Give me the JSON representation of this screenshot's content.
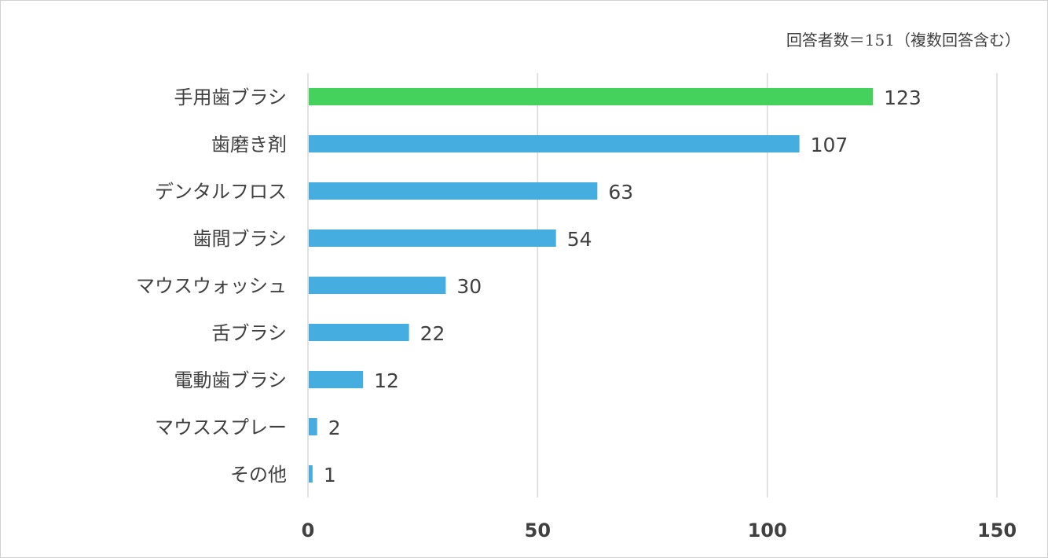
{
  "chart_data": {
    "type": "bar",
    "orientation": "horizontal",
    "note": "回答者数＝151（複数回答含む）",
    "categories": [
      "手用歯ブラシ",
      "歯磨き剤",
      "デンタルフロス",
      "歯間ブラシ",
      "マウスウォッシュ",
      "舌ブラシ",
      "電動歯ブラシ",
      "マウススプレー",
      "その他"
    ],
    "values": [
      123,
      107,
      63,
      54,
      30,
      22,
      12,
      2,
      1
    ],
    "xlim": [
      0,
      150
    ],
    "ticks": [
      0,
      50,
      100,
      150
    ],
    "grid": true,
    "legend": "none",
    "colors": {
      "highlight": "#44d15c",
      "bar": "#46ade0",
      "grid": "#d9d9d9",
      "text": "#404040"
    },
    "highlight_index": 0
  }
}
